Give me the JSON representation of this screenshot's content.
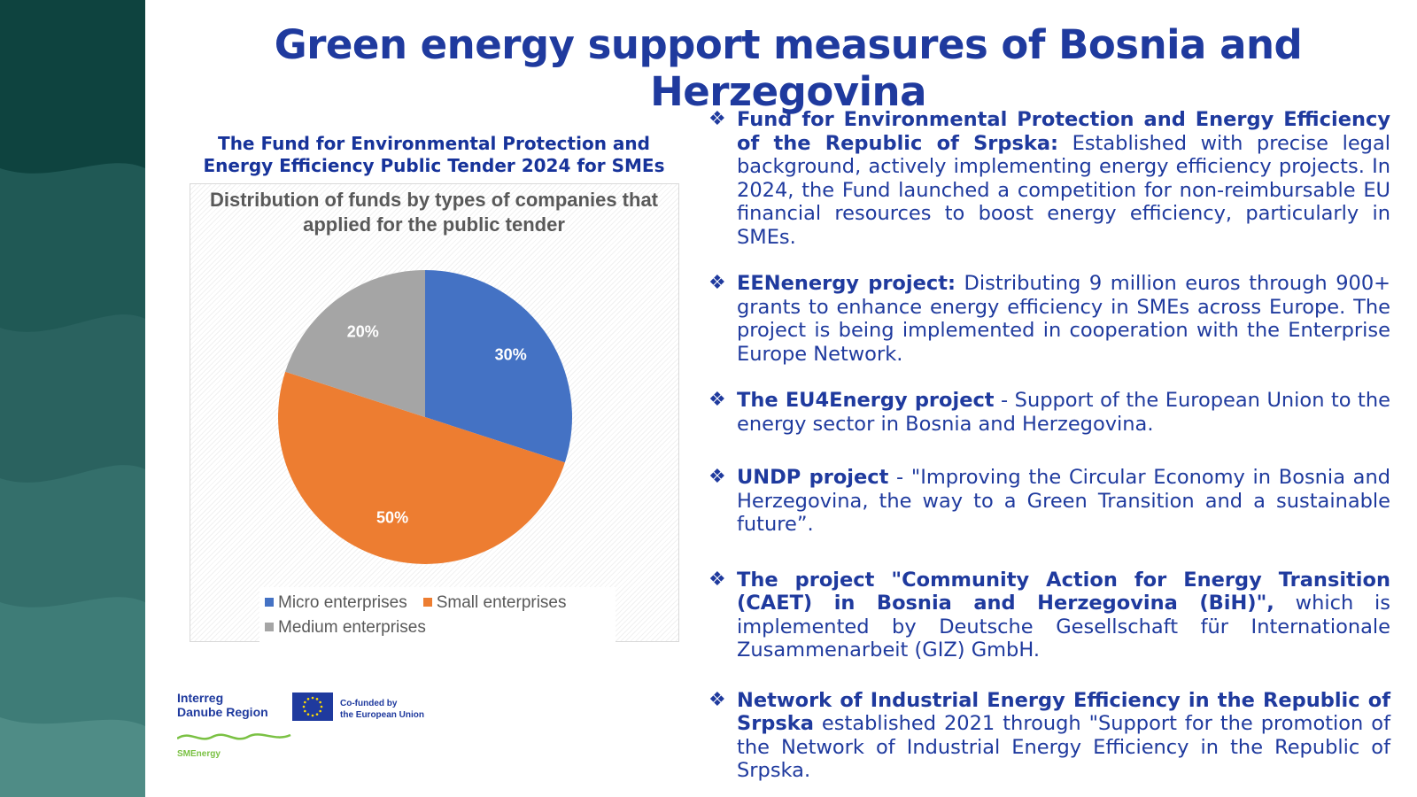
{
  "title": "Green energy support measures of Bosnia and Herzegovina",
  "chart_heading": "The Fund for Environmental Protection and Energy Efficiency Public Tender 2024 for SMEs",
  "chart_data": {
    "type": "pie",
    "title": "Distribution of funds by types of companies that applied for the public tender",
    "series": [
      {
        "name": "Micro enterprises",
        "value": 30,
        "label": "30%",
        "color": "#4472c4"
      },
      {
        "name": "Small enterprises",
        "value": 50,
        "label": "50%",
        "color": "#ed7d31"
      },
      {
        "name": "Medium enterprises",
        "value": 20,
        "label": "20%",
        "color": "#a5a5a5"
      }
    ],
    "legend_position": "bottom",
    "grid": false
  },
  "bullets": [
    {
      "bold": "Fund for Environmental Protection and Energy Efficiency of the Republic of Srpska:",
      "text": " Established with precise legal background, actively implementing energy efficiency projects. In 2024, the Fund launched a competition for non-reimbursable EU financial resources to boost energy efficiency, particularly in SMEs."
    },
    {
      "bold": "EENenergy project:",
      "text": " Distributing 9 million euros through 900+ grants to enhance energy efficiency in SMEs across Europe. The project is being implemented in cooperation with the Enterprise Europe Network."
    },
    {
      "bold": "The EU4Energy project",
      "text": " - Support of the European Union to the energy sector in Bosnia and Herzegovina."
    },
    {
      "bold": "UNDP project",
      "text": " - \"Improving the Circular Economy in Bosnia and Herzegovina, the way to a Green Transition and a sustainable future”."
    },
    {
      "bold": "The project \"Community Action for Energy Transition (CAET) in Bosnia and Herzegovina (BiH)\",",
      "text": " which is implemented by Deutsche Gesellschaft für Internationale Zusammenarbeit (GIZ) GmbH."
    },
    {
      "bold": "Network of Industrial Energy Efficiency in the Republic of Srpska",
      "text": " established 2021 through \"Support for the promotion of the Network of Industrial Energy Efficiency in the Republic of Srpska."
    }
  ],
  "bullet_icon": "❖",
  "logos": {
    "interreg_line1": "Interreg",
    "interreg_line2": "Danube Region",
    "cofunded_line1": "Co-funded by",
    "cofunded_line2": "the European Union",
    "smenergy": "SMEnergy"
  },
  "colors": {
    "title": "#1f3a9e",
    "band_dark": "#0f4a46",
    "band_light": "#4d8a84"
  }
}
